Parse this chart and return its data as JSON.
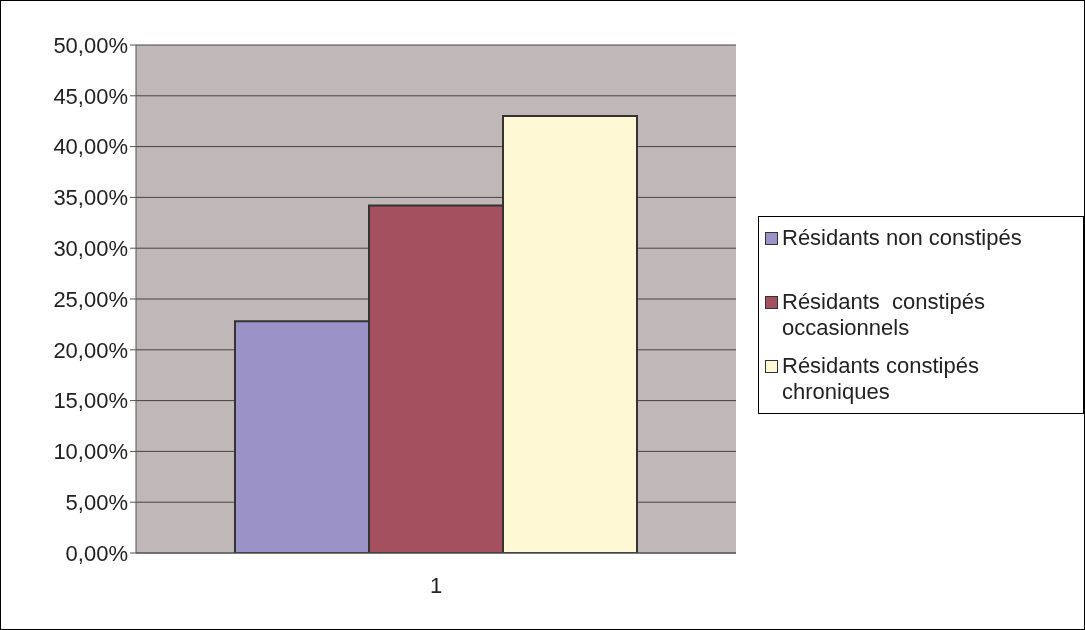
{
  "chart_data": {
    "type": "bar",
    "categories": [
      "1"
    ],
    "series": [
      {
        "name": "Résidants non constipés",
        "color": "#9b93c8",
        "values": [
          22.8
        ]
      },
      {
        "name": "Résidants  constipés occasionnels",
        "color": "#a5505e",
        "values": [
          34.2
        ]
      },
      {
        "name": "Résidants constipés chroniques",
        "color": "#fef8d4",
        "values": [
          43.0
        ]
      }
    ],
    "ylim": [
      0,
      50
    ],
    "yticks": [
      {
        "value": 0,
        "label": "0,00%"
      },
      {
        "value": 5,
        "label": "5,00%"
      },
      {
        "value": 10,
        "label": "10,00%"
      },
      {
        "value": 15,
        "label": "15,00%"
      },
      {
        "value": 20,
        "label": "20,00%"
      },
      {
        "value": 25,
        "label": "25,00%"
      },
      {
        "value": 30,
        "label": "30,00%"
      },
      {
        "value": 35,
        "label": "35,00%"
      },
      {
        "value": 40,
        "label": "40,00%"
      },
      {
        "value": 45,
        "label": "45,00%"
      },
      {
        "value": 50,
        "label": "50,00%"
      }
    ],
    "grid": "y",
    "legend": "right"
  }
}
